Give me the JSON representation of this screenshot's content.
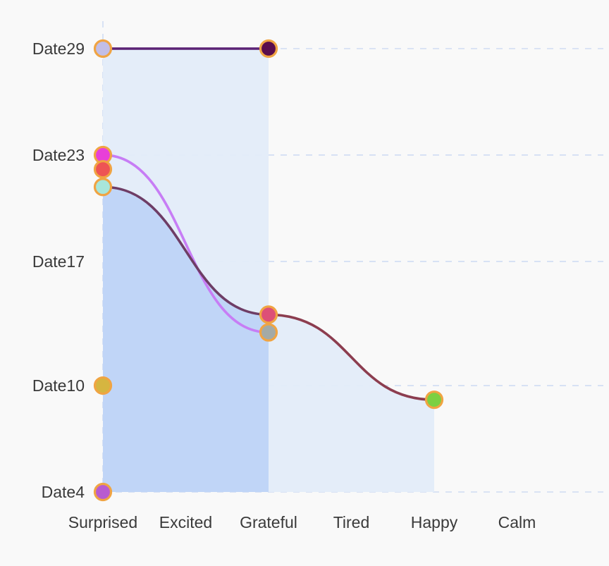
{
  "chart_data": {
    "type": "line",
    "categories": [
      "Surprised",
      "Excited",
      "Grateful",
      "Tired",
      "Happy",
      "Calm"
    ],
    "y_ticks": [
      "Date4",
      "Date10",
      "Date17",
      "Date23",
      "Date29"
    ],
    "ylim": [
      4,
      29
    ],
    "grid": true,
    "colors": {
      "grid": "#cfdcf3",
      "area_light": "#e3ecf9",
      "area_dark": "#bed4f7",
      "marker_stroke": "#f0a443"
    },
    "areas": [
      {
        "name": "",
        "color": "#e3ecf9",
        "points": [
          [
            "Surprised",
            29
          ],
          [
            "Grateful",
            29
          ]
        ]
      },
      {
        "name": "",
        "color": "#e3ecf9",
        "points": [
          [
            "Grateful",
            14
          ],
          [
            "Happy",
            9.2
          ]
        ]
      },
      {
        "name": "",
        "color": "#bed4f7",
        "points": [
          [
            "Surprised",
            21.2
          ],
          [
            "Grateful",
            14
          ]
        ]
      }
    ],
    "series": [
      {
        "name": "",
        "color": "#5b2275",
        "points": [
          [
            "Surprised",
            29
          ],
          [
            "Grateful",
            29
          ]
        ]
      },
      {
        "name": "",
        "color": "#c77df5",
        "points": [
          [
            "Surprised",
            23
          ],
          [
            "Grateful",
            13
          ]
        ]
      },
      {
        "name": "",
        "color": "#6e3d66",
        "points": [
          [
            "Surprised",
            21.2
          ],
          [
            "Grateful",
            14
          ]
        ]
      },
      {
        "name": "",
        "color": "#8c3d4f",
        "points": [
          [
            "Grateful",
            14
          ],
          [
            "Happy",
            9.2
          ]
        ]
      }
    ],
    "markers": [
      {
        "category": "Surprised",
        "y": 29,
        "color": "#c2bee6"
      },
      {
        "category": "Grateful",
        "y": 29,
        "color": "#5a0d4d"
      },
      {
        "category": "Surprised",
        "y": 23,
        "color": "#e83fd9"
      },
      {
        "category": "Surprised",
        "y": 22.2,
        "color": "#ee5454"
      },
      {
        "category": "Surprised",
        "y": 21.2,
        "color": "#a8e6da"
      },
      {
        "category": "Grateful",
        "y": 14,
        "color": "#dd4f77"
      },
      {
        "category": "Grateful",
        "y": 13,
        "color": "#a4aaa6"
      },
      {
        "category": "Surprised",
        "y": 10,
        "color": "#d6b540"
      },
      {
        "category": "Happy",
        "y": 9.2,
        "color": "#7cd042"
      },
      {
        "category": "Surprised",
        "y": 4,
        "color": "#b85bd0"
      }
    ]
  }
}
